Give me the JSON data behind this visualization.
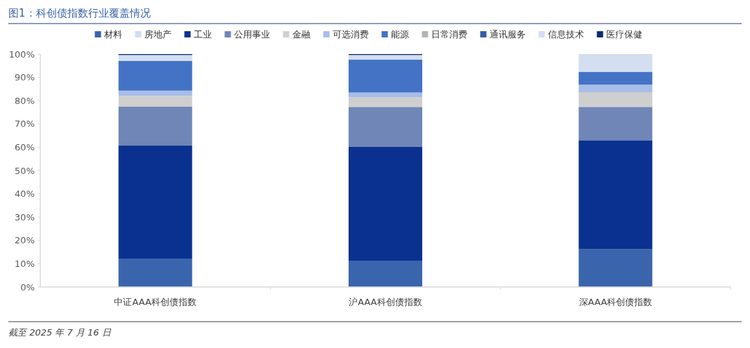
{
  "chart_data": {
    "type": "bar",
    "title": "图1：科创债指数行业覆盖情况",
    "stacked": true,
    "legend": "top",
    "grid": false,
    "categories": [
      "中证AAA科创债指数",
      "沪AAA科创债指数",
      "深AAA科创债指数"
    ],
    "ylim": [
      0,
      100
    ],
    "yticks": [
      {
        "value": 0,
        "label": "0%"
      },
      {
        "value": 10,
        "label": "10%"
      },
      {
        "value": 20,
        "label": "20%"
      },
      {
        "value": 30,
        "label": "30%"
      },
      {
        "value": 40,
        "label": "40%"
      },
      {
        "value": 50,
        "label": "50%"
      },
      {
        "value": 60,
        "label": "60%"
      },
      {
        "value": 70,
        "label": "70%"
      },
      {
        "value": 80,
        "label": "80%"
      },
      {
        "value": 90,
        "label": "90%"
      },
      {
        "value": 100,
        "label": "100%"
      }
    ],
    "series": [
      {
        "name": "材料",
        "color": "#3a65ad",
        "values": [
          12.0,
          11.3,
          16.2
        ]
      },
      {
        "name": "房地产",
        "color": "#d0dcf0",
        "values": [
          null,
          null,
          0
        ]
      },
      {
        "name": "工业",
        "color": "#0a318f",
        "values": [
          48.7,
          49.0,
          46.8
        ]
      },
      {
        "name": "公用事业",
        "color": "#6f86b7",
        "values": [
          16.7,
          17.0,
          14.3
        ]
      },
      {
        "name": "金融",
        "color": "#cfcfcf",
        "values": [
          4.6,
          4.2,
          6.3
        ]
      },
      {
        "name": "可选消费",
        "color": "#a8bde8",
        "values": [
          2.3,
          2.0,
          3.3
        ]
      },
      {
        "name": "能源",
        "color": "#4473c5",
        "values": [
          12.8,
          14.1,
          5.5
        ]
      },
      {
        "name": "日常消费",
        "color": "#b4b4b4",
        "values": [
          null,
          0,
          0
        ]
      },
      {
        "name": "通讯服务",
        "color": "#345fa6",
        "values": [
          0,
          0,
          0
        ]
      },
      {
        "name": "信息技术",
        "color": "#d3dff0",
        "values": [
          2.5,
          2.0,
          7.6
        ]
      },
      {
        "name": "医疗保健",
        "color": "#0c2a70",
        "values": [
          0.4,
          0.4,
          0
        ]
      }
    ],
    "annotations": [
      "截至 2025 年 7 月 16 日"
    ]
  }
}
